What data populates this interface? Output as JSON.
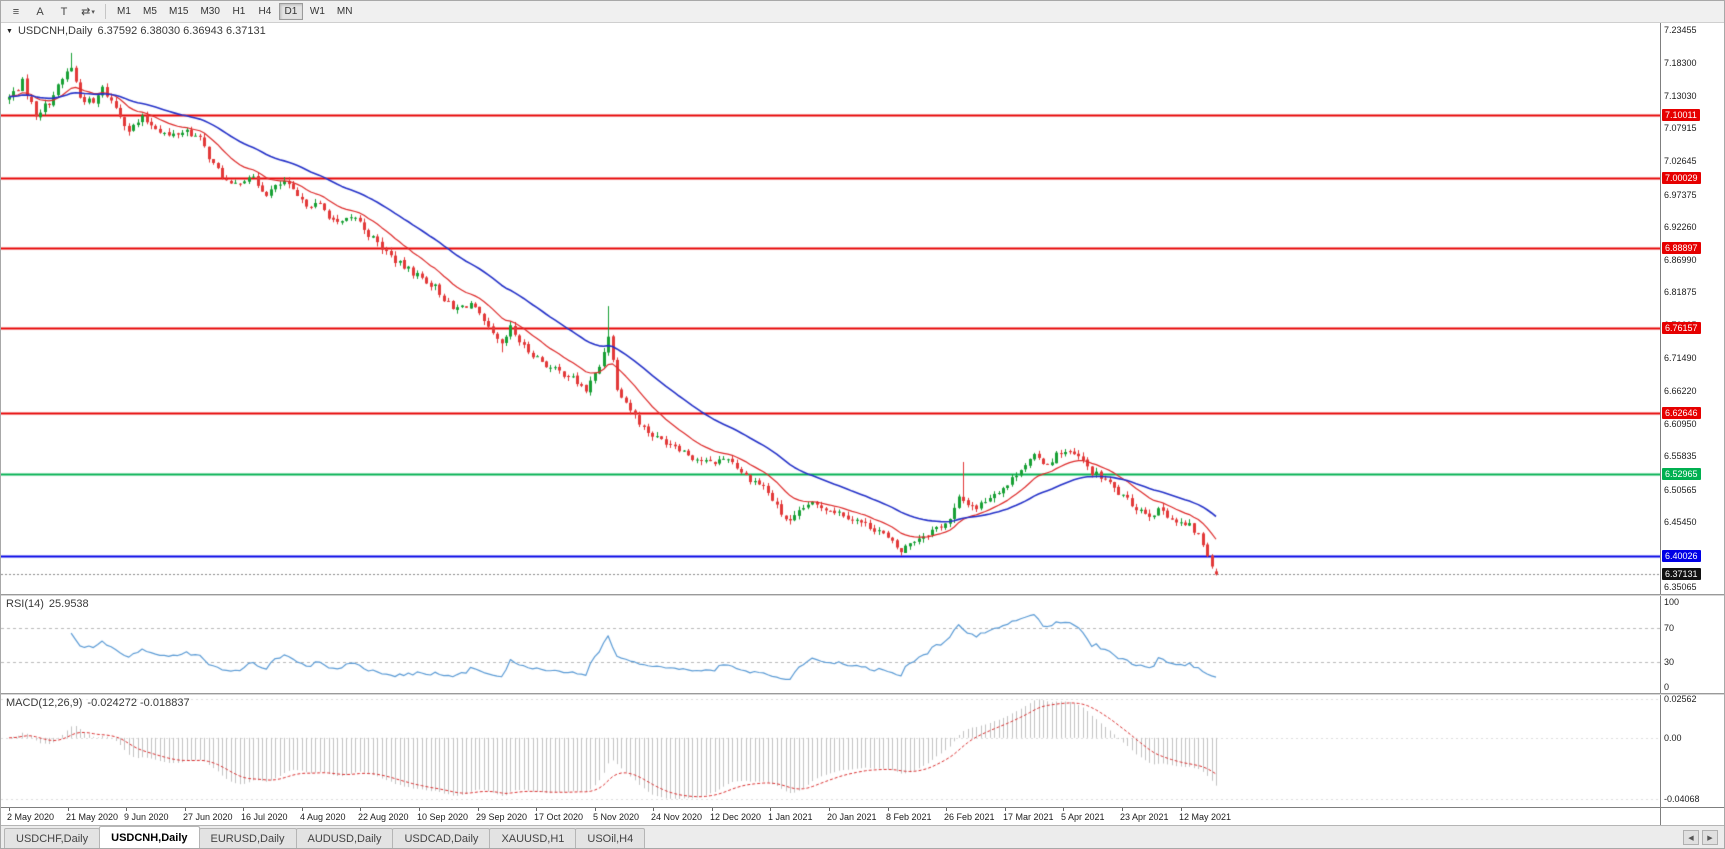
{
  "toolbar": {
    "tools": [
      {
        "name": "lines-icon",
        "glyph": "≡"
      },
      {
        "name": "letter-a-icon",
        "glyph": "A"
      },
      {
        "name": "letter-t-icon",
        "glyph": "T"
      },
      {
        "name": "arrows-icon",
        "glyph": "⇄",
        "caret": "▾"
      }
    ],
    "timeframes": [
      "M1",
      "M5",
      "M15",
      "M30",
      "H1",
      "H4",
      "D1",
      "W1",
      "MN"
    ],
    "active_timeframe": "D1"
  },
  "chart": {
    "symbol_period": "USDCNH,Daily",
    "ohlc_text": "6.37592 6.38030 6.36943 6.37131"
  },
  "price_axis": {
    "ticks": [
      "7.23455",
      "7.18300",
      "7.13030",
      "7.07915",
      "7.02645",
      "6.97375",
      "6.92260",
      "6.86990",
      "6.81875",
      "6.76605",
      "6.71490",
      "6.66220",
      "6.60950",
      "6.55835",
      "6.50565",
      "6.45450",
      "6.35065"
    ]
  },
  "chart_data": {
    "type": "candlestick",
    "symbol": "USDCNH",
    "timeframe": "Daily",
    "title": "USDCNH,Daily",
    "last_candle": {
      "o": 6.37592,
      "h": 6.3803,
      "l": 6.36943,
      "c": 6.37131
    },
    "y_range": [
      6.34,
      7.246
    ],
    "days_total": 273,
    "close_path_anchors": [
      [
        0,
        7.128
      ],
      [
        3,
        7.152
      ],
      [
        6,
        7.101
      ],
      [
        9,
        7.121
      ],
      [
        13,
        7.168
      ],
      [
        14,
        7.176
      ],
      [
        16,
        7.128
      ],
      [
        19,
        7.118
      ],
      [
        21,
        7.142
      ],
      [
        24,
        7.112
      ],
      [
        27,
        7.076
      ],
      [
        30,
        7.094
      ],
      [
        33,
        7.081
      ],
      [
        36,
        7.066
      ],
      [
        40,
        7.076
      ],
      [
        43,
        7.061
      ],
      [
        46,
        7.021
      ],
      [
        50,
        6.986
      ],
      [
        54,
        7.004
      ],
      [
        58,
        6.976
      ],
      [
        62,
        6.994
      ],
      [
        66,
        6.961
      ],
      [
        70,
        6.956
      ],
      [
        74,
        6.926
      ],
      [
        78,
        6.938
      ],
      [
        81,
        6.911
      ],
      [
        84,
        6.889
      ],
      [
        88,
        6.863
      ],
      [
        92,
        6.846
      ],
      [
        96,
        6.827
      ],
      [
        100,
        6.791
      ],
      [
        104,
        6.801
      ],
      [
        108,
        6.759
      ],
      [
        111,
        6.733
      ],
      [
        113,
        6.762
      ],
      [
        116,
        6.731
      ],
      [
        118,
        6.721
      ],
      [
        122,
        6.698
      ],
      [
        126,
        6.687
      ],
      [
        130,
        6.663
      ],
      [
        133,
        6.701
      ],
      [
        135,
        6.752
      ],
      [
        137,
        6.669
      ],
      [
        140,
        6.633
      ],
      [
        143,
        6.603
      ],
      [
        146,
        6.587
      ],
      [
        150,
        6.577
      ],
      [
        154,
        6.557
      ],
      [
        158,
        6.547
      ],
      [
        162,
        6.557
      ],
      [
        166,
        6.527
      ],
      [
        170,
        6.511
      ],
      [
        174,
        6.467
      ],
      [
        176,
        6.453
      ],
      [
        180,
        6.483
      ],
      [
        184,
        6.477
      ],
      [
        188,
        6.467
      ],
      [
        192,
        6.453
      ],
      [
        196,
        6.441
      ],
      [
        198,
        6.427
      ],
      [
        201,
        6.407
      ],
      [
        203,
        6.422
      ],
      [
        208,
        6.441
      ],
      [
        212,
        6.457
      ],
      [
        214,
        6.491
      ],
      [
        218,
        6.477
      ],
      [
        222,
        6.501
      ],
      [
        225,
        6.513
      ],
      [
        228,
        6.541
      ],
      [
        231,
        6.557
      ],
      [
        234,
        6.547
      ],
      [
        237,
        6.567
      ],
      [
        241,
        6.557
      ],
      [
        244,
        6.533
      ],
      [
        247,
        6.521
      ],
      [
        251,
        6.493
      ],
      [
        254,
        6.477
      ],
      [
        257,
        6.467
      ],
      [
        260,
        6.473
      ],
      [
        263,
        6.453
      ],
      [
        266,
        6.447
      ],
      [
        268,
        6.433
      ],
      [
        270,
        6.403
      ],
      [
        271,
        6.389
      ],
      [
        272,
        6.3713
      ]
    ],
    "spikes": [
      {
        "day": 14,
        "high_extra": 0.022
      },
      {
        "day": 111,
        "low_extra": 0.012
      },
      {
        "day": 135,
        "high_extra": 0.048
      },
      {
        "day": 215,
        "high_extra": 0.05
      }
    ],
    "hlines": [
      {
        "price": 7.10011,
        "label": "7.10011",
        "color": "#e60000"
      },
      {
        "price": 7.00029,
        "label": "7.00029",
        "color": "#e60000"
      },
      {
        "price": 6.88897,
        "label": "6.88897",
        "color": "#e60000"
      },
      {
        "price": 6.76157,
        "label": "6.76157",
        "color": "#e60000"
      },
      {
        "price": 6.62646,
        "label": "6.62646",
        "color": "#e60000"
      },
      {
        "price": 6.52965,
        "label": "6.52965",
        "color": "#00b050"
      },
      {
        "price": 6.40026,
        "label": "6.40026",
        "color": "#0000e6"
      }
    ],
    "current_price": {
      "label": "6.37131",
      "value": 6.37131,
      "bg": "#111111"
    },
    "moving_averages": [
      {
        "name": "fast-ma",
        "period": 13,
        "color": "#dd2a2a",
        "width": 1.2
      },
      {
        "name": "slow-ma",
        "period": 34,
        "color": "#2431c8",
        "width": 1.6
      }
    ],
    "candle_colors": {
      "up": "#18a035",
      "down": "#e23939"
    },
    "indicators": {
      "rsi": {
        "label": "RSI(14)",
        "value": "25.9538",
        "period": 14,
        "levels": [
          70,
          30
        ],
        "ticks": [
          "100",
          "70",
          "30",
          "0"
        ],
        "color": "#5b9bd5"
      },
      "macd": {
        "label": "MACD(12,26,9)",
        "values": "-0.024272 -0.018837",
        "fast": 12,
        "slow": 26,
        "signal": 9,
        "ticks": [
          {
            "label": "0.02562",
            "value": 0.02562
          },
          {
            "label": "0.00",
            "value": 0
          },
          {
            "label": "-0.04068",
            "value": -0.04068
          }
        ],
        "scale_range": [
          -0.046,
          0.0285
        ],
        "histogram_color": "#c2c2c2",
        "signal_color": "#d93030"
      }
    },
    "x_labels": [
      "2 May 2020",
      "21 May 2020",
      "9 Jun 2020",
      "27 Jun 2020",
      "16 Jul 2020",
      "4 Aug 2020",
      "22 Aug 2020",
      "10 Sep 2020",
      "29 Sep 2020",
      "17 Oct 2020",
      "5 Nov 2020",
      "24 Nov 2020",
      "12 Dec 2020",
      "1 Jan 2021",
      "20 Jan 2021",
      "8 Feb 2021",
      "26 Feb 2021",
      "17 Mar 2021",
      "5 Apr 2021",
      "23 Apr 2021",
      "12 May 2021"
    ],
    "label_day_stride": 13.2
  },
  "tabs": {
    "items": [
      "USDCHF,Daily",
      "USDCNH,Daily",
      "EURUSD,Daily",
      "AUDUSD,Daily",
      "USDCAD,Daily",
      "XAUUSD,H1",
      "USOil,H4"
    ],
    "active": "USDCNH,Daily",
    "nav_left": "◀",
    "nav_right": "▶"
  }
}
